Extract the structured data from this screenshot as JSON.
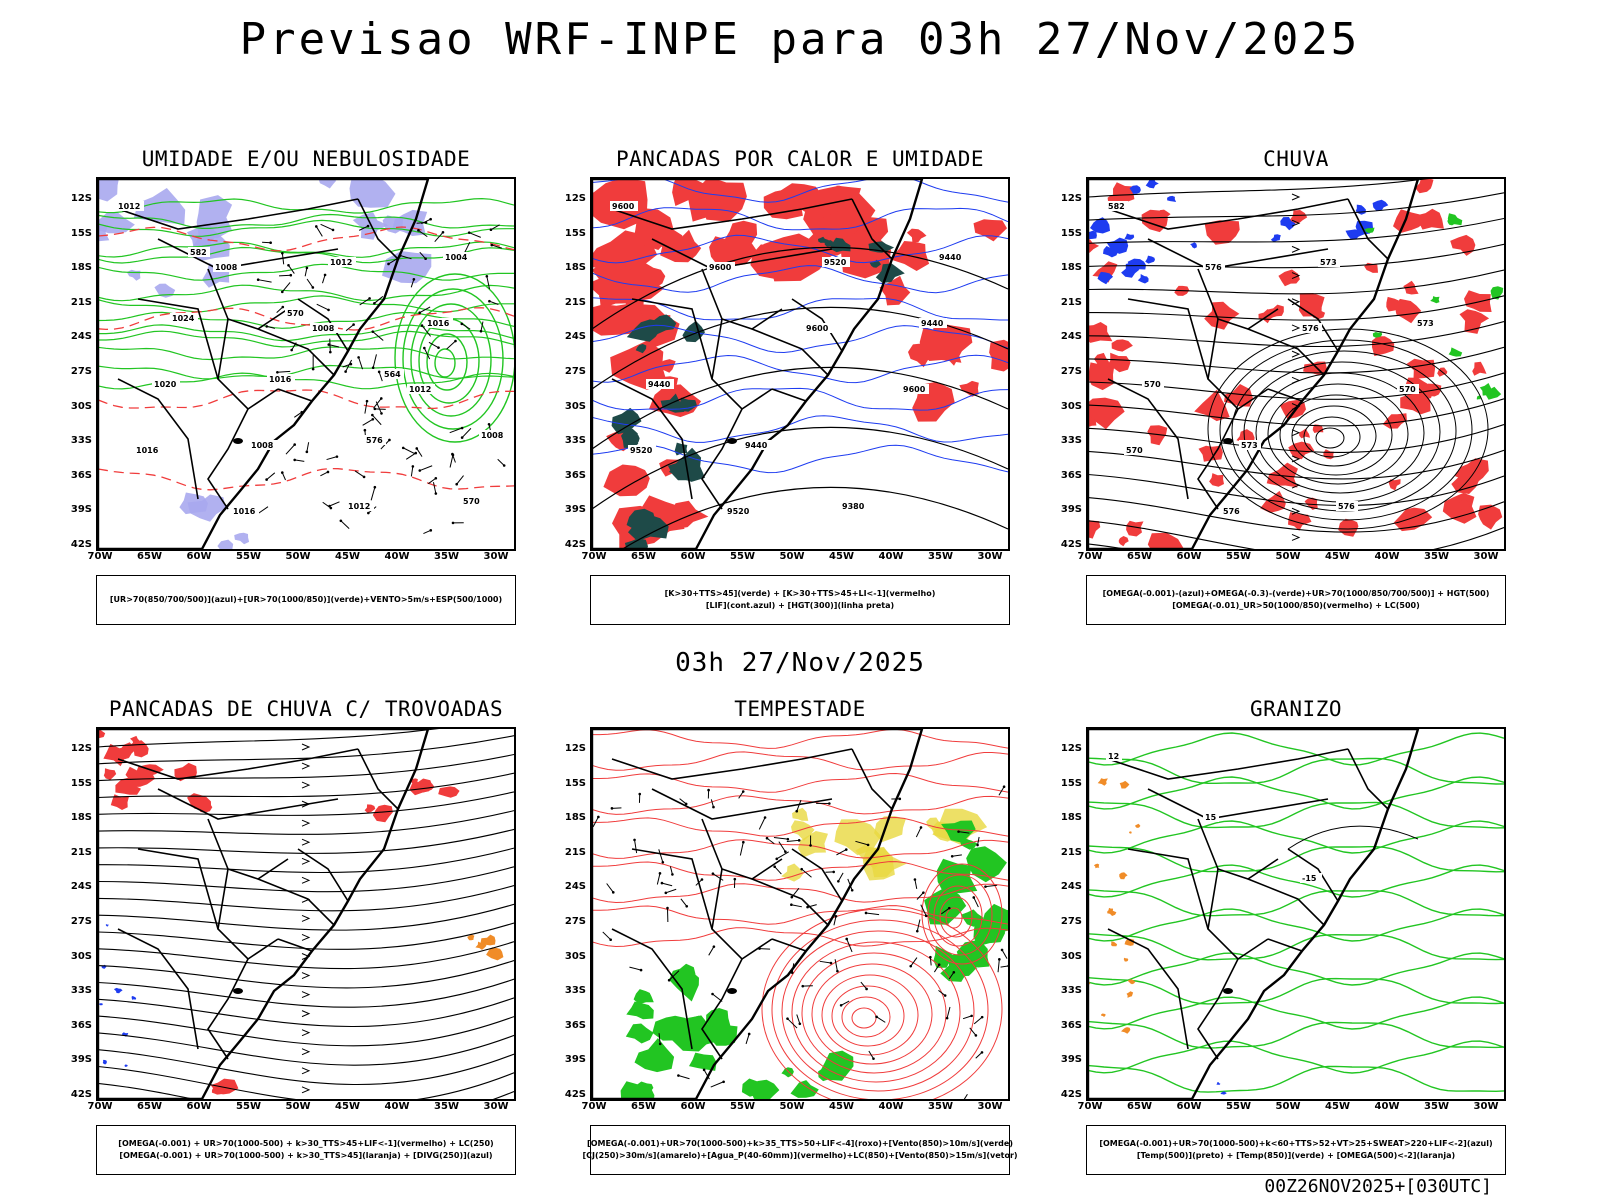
{
  "header": {
    "title": "Previsao WRF-INPE  para 03h 27/Nov/2025",
    "mid_title": "03h 27/Nov/2025",
    "run_label": "00Z26NOV2025+[030UTC]"
  },
  "axes": {
    "lat_labels": [
      "12S",
      "15S",
      "18S",
      "21S",
      "24S",
      "27S",
      "30S",
      "33S",
      "36S",
      "39S",
      "42S"
    ],
    "lon_labels": [
      "70W",
      "65W",
      "60W",
      "55W",
      "50W",
      "45W",
      "40W",
      "35W",
      "30W"
    ]
  },
  "colors": {
    "red": "#f03c3c",
    "green": "#22c522",
    "blue": "#1e3cf0",
    "lavender": "#a8a8ee",
    "dark_teal": "#1e4a48",
    "yellow": "#e8d840",
    "orange": "#f08c28",
    "black": "#000000"
  },
  "panels": [
    {
      "title": "UMIDADE E/OU NEBULOSIDADE",
      "legend": [
        "[UR>70(850/700/500)](azul)+[UR>70(1000/850)](verde)+VENTO>5m/s+ESP(500/1000)"
      ],
      "contour_labels": [
        "1012",
        "1008",
        "1008",
        "1012",
        "1016",
        "1016",
        "1012",
        "1016",
        "1020",
        "1008",
        "1012",
        "1004",
        "1024",
        "1016",
        "576",
        "570",
        "582",
        "570",
        "564",
        "1008"
      ]
    },
    {
      "title": "PANCADAS POR CALOR E UMIDADE",
      "legend": [
        "[K>30+TTS>45](verde) + [K>30+TTS>45+LI<-1](vermelho)",
        "[LIF](cont.azul) + [HGT(300)](linha preta)"
      ],
      "contour_labels": [
        "9600",
        "9600",
        "9600",
        "9600",
        "9520",
        "9520",
        "9520",
        "9440",
        "9440",
        "9440",
        "9380",
        "9440"
      ]
    },
    {
      "title": "CHUVA",
      "legend": [
        "[OMEGA(-0.001)-(azul)+OMEGA(-0.3)-(verde)+UR>70(1000/850/700/500)] + HGT(500)",
        "[OMEGA(-0.01)_UR>50(1000/850)(vermelho) + LC(500)"
      ],
      "contour_labels": [
        "582",
        "576",
        "576",
        "570",
        "570",
        "576",
        "573",
        "573",
        "570",
        "573",
        "576"
      ]
    },
    {
      "title": "PANCADAS DE CHUVA C/ TROVOADAS",
      "legend": [
        "[OMEGA(-0.001) + UR>70(1000-500) + k>30_TTS>45+LIF<-1](vermelho) + LC(250)",
        "[OMEGA(-0.001) + UR>70(1000-500) + k>30_TTS>45](laranja) + [DIVG(250)](azul)"
      ],
      "contour_labels": []
    },
    {
      "title": "TEMPESTADE",
      "legend": [
        "[OMEGA(-0.001)+UR>70(1000-500)+k>35_TTS>50+LIF<-4](roxo)+[Vento(850)>10m/s](verde)",
        "[CJ(250)>30m/s](amarelo)+[Agua_P(40-60mm)](vermelho)+LC(850)+[Vento(850)>15m/s](vetor)"
      ],
      "contour_labels": []
    },
    {
      "title": "GRANIZO",
      "legend": [
        "[OMEGA(-0.001)+UR>70(1000-500)+k<60+TTS>52+VT>25+SWEAT>220+LIF<-2](azul)",
        "[Temp(500)](preto) + [Temp(850)](verde) + [OMEGA(500)<-2](laranja)"
      ],
      "contour_labels": [
        "12",
        "15",
        "-15"
      ]
    }
  ]
}
